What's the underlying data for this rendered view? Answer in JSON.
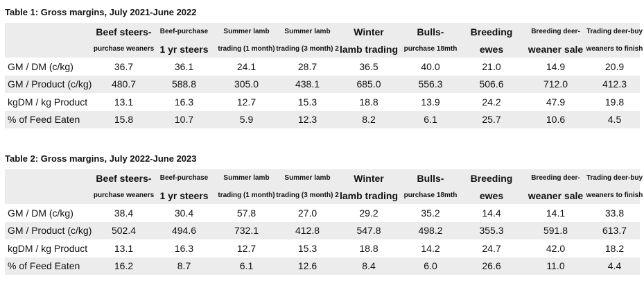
{
  "tables": [
    {
      "title": "Table 1: Gross margins, July 2021-June 2022",
      "header": [
        [
          "Beef steers-",
          "purchase weaners"
        ],
        [
          "Beef-purchase",
          "1 yr steers"
        ],
        [
          "Summer lamb",
          "trading (1 month)"
        ],
        [
          "Summer lamb",
          "trading (3 month) 2"
        ],
        [
          "Winter",
          "lamb trading"
        ],
        [
          "Bulls-",
          "purchase 18mth"
        ],
        [
          "Breeding",
          "ewes"
        ],
        [
          "Breeding deer-",
          "weaner sale"
        ],
        [
          "Trading deer-buy",
          "weaners to finish"
        ]
      ],
      "rows": [
        [
          "GM / DM (c/kg)",
          "36.7",
          "36.1",
          "24.1",
          "28.7",
          "36.5",
          "40.0",
          "21.0",
          "14.9",
          "20.9"
        ],
        [
          "GM / Product (c/kg)",
          "480.7",
          "588.8",
          "305.0",
          "438.1",
          "685.0",
          "556.3",
          "506.6",
          "712.0",
          "412.3"
        ],
        [
          "kgDM / kg Product",
          "13.1",
          "16.3",
          "12.7",
          "15.3",
          "18.8",
          "13.9",
          "24.2",
          "47.9",
          "19.8"
        ],
        [
          "% of Feed Eaten",
          "15.8",
          "10.7",
          "5.9",
          "12.3",
          "8.2",
          "6.1",
          "25.7",
          "10.6",
          "4.5"
        ]
      ]
    },
    {
      "title": "Table 2: Gross margins, July 2022-June 2023",
      "header": [
        [
          "Beef steers-",
          "purchase weaners"
        ],
        [
          "Beef-purchase",
          "1 yr steers"
        ],
        [
          "Summer lamb",
          "trading (1 month)"
        ],
        [
          "Summer lamb",
          "trading (3 month) 2"
        ],
        [
          "Winter",
          "lamb trading"
        ],
        [
          "Bulls-",
          "purchase 18mth"
        ],
        [
          "Breeding",
          "ewes"
        ],
        [
          "Breeding deer-",
          "weaner sale"
        ],
        [
          "Trading deer-buy",
          "weaners to finish"
        ]
      ],
      "rows": [
        [
          "GM / DM (c/kg)",
          "38.4",
          "30.4",
          "57.8",
          "27.0",
          "29.2",
          "35.2",
          "14.4",
          "14.1",
          "33.8"
        ],
        [
          "GM / Product (c/kg)",
          "502.4",
          "494.6",
          "732.1",
          "412.8",
          "547.8",
          "498.2",
          "355.3",
          "591.8",
          "613.7"
        ],
        [
          "kgDM / kg Product",
          "13.1",
          "16.3",
          "12.7",
          "15.3",
          "18.8",
          "14.2",
          "24.7",
          "42.0",
          "18.2"
        ],
        [
          "% of Feed Eaten",
          "16.2",
          "8.7",
          "6.1",
          "12.6",
          "8.4",
          "6.0",
          "26.6",
          "11.0",
          "4.4"
        ]
      ]
    }
  ]
}
